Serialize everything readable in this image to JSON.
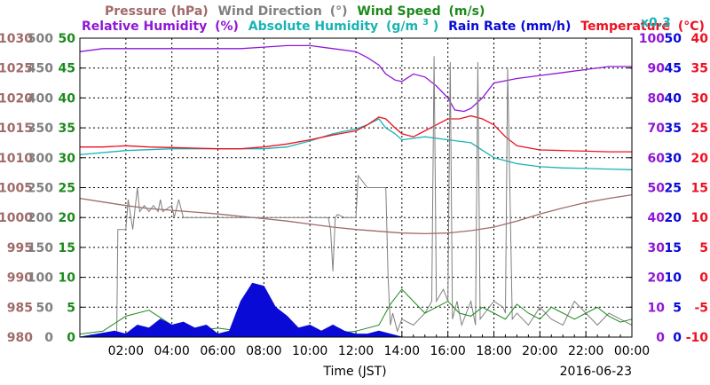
{
  "colors": {
    "pressure": "#a06a6a",
    "wind_direction": "#808080",
    "wind_speed": "#1b8a1b",
    "relative_humidity": "#8f17d6",
    "absolute_humidity": "#1ab3b3",
    "rain_rate": "#0a0ad6",
    "temperature": "#ee1122",
    "grid": "#000000"
  },
  "chart_data": {
    "type": "line",
    "legend": {
      "row1": [
        "Pressure (hPa)",
        "Wind Direction",
        "(°)",
        "Wind Speed",
        "(m/s)"
      ],
      "row2": [
        "Relative Humidity",
        "(%)",
        "Absolute Humidity",
        "(g/m",
        "3",
        ")",
        "Rain Rate",
        "(mm/h)",
        "Temperature",
        "(°C)",
        "x0.3"
      ]
    },
    "xlabel": "Time (JST)",
    "date": "2016-06-23",
    "x_ticks": [
      "02:00",
      "04:00",
      "06:00",
      "08:00",
      "10:00",
      "12:00",
      "14:00",
      "16:00",
      "18:00",
      "20:00",
      "22:00",
      "00:00"
    ],
    "xlim": [
      0,
      24
    ],
    "axes": {
      "pressure": {
        "range": [
          980,
          1030
        ],
        "ticks": [
          "1030",
          "1025",
          "1020",
          "1015",
          "1010",
          "1005",
          "1000",
          "995",
          "990",
          "985",
          "980"
        ]
      },
      "wind_direction": {
        "range": [
          0,
          500
        ],
        "ticks": [
          "500",
          "450",
          "400",
          "350",
          "300",
          "250",
          "200",
          "150",
          "100",
          "50",
          "0"
        ]
      },
      "wind_speed": {
        "range": [
          0,
          50
        ],
        "ticks": [
          "50",
          "45",
          "40",
          "35",
          "30",
          "25",
          "20",
          "15",
          "10",
          "5",
          "0"
        ]
      },
      "relative_humidity": {
        "range": [
          0,
          100
        ],
        "ticks": [
          "100",
          "90",
          "80",
          "70",
          "60",
          "50",
          "40",
          "30",
          "20",
          "10",
          "0"
        ]
      },
      "rain_rate": {
        "range": [
          0,
          50
        ],
        "ticks": [
          "50",
          "45",
          "40",
          "35",
          "30",
          "25",
          "20",
          "15",
          "10",
          "5",
          "0"
        ]
      },
      "temperature": {
        "range": [
          -10,
          40
        ],
        "ticks": [
          "40",
          "35",
          "30",
          "25",
          "20",
          "15",
          "10",
          "5",
          "0",
          "-5",
          "-10"
        ]
      }
    },
    "series": [
      {
        "name": "Pressure (hPa)",
        "axis": "pressure",
        "x": [
          0,
          1,
          2,
          3,
          4,
          5,
          6,
          7,
          8,
          9,
          10,
          11,
          12,
          13,
          14,
          15,
          16,
          17,
          18,
          19,
          20,
          21,
          22,
          23,
          24
        ],
        "y": [
          1003.2,
          1002.6,
          1002.0,
          1001.5,
          1001.2,
          1000.9,
          1000.6,
          1000.2,
          999.8,
          999.4,
          998.9,
          998.4,
          998.0,
          997.7,
          997.4,
          997.3,
          997.4,
          997.8,
          998.4,
          999.4,
          1000.6,
          1001.6,
          1002.5,
          1003.2,
          1003.8
        ]
      },
      {
        "name": "Relative Humidity (%)",
        "axis": "relative_humidity",
        "x": [
          0,
          1,
          2,
          3,
          4,
          5,
          6,
          7,
          8,
          9,
          10,
          11,
          12,
          12.5,
          13,
          13.3,
          13.7,
          14.0,
          14.5,
          15.0,
          15.5,
          16.0,
          16.3,
          16.7,
          17.0,
          17.5,
          18.0,
          19.0,
          20.0,
          21.0,
          22.0,
          23.0,
          24.0
        ],
        "y": [
          95.5,
          96.5,
          96.5,
          96.5,
          96.5,
          96.5,
          96.5,
          96.5,
          97.0,
          97.5,
          97.5,
          96.5,
          95.5,
          93.5,
          91.0,
          88.0,
          86.0,
          85.5,
          88.0,
          87.0,
          84.0,
          80.0,
          76.0,
          75.5,
          76.5,
          80.0,
          85.0,
          86.5,
          87.5,
          88.5,
          89.5,
          90.5,
          90.5
        ]
      },
      {
        "name": "Absolute Humidity (g/m3)",
        "axis": "rain_rate",
        "x": [
          0,
          2,
          4,
          6,
          8,
          9,
          10,
          11,
          12,
          12.5,
          13,
          13.3,
          13.7,
          14,
          15,
          16,
          17,
          18,
          19,
          20,
          21,
          22,
          23,
          24
        ],
        "y": [
          30.5,
          31.2,
          31.5,
          31.5,
          31.5,
          31.8,
          32.8,
          34.0,
          34.8,
          35.5,
          36.5,
          35.0,
          34.0,
          33.0,
          33.5,
          33.0,
          32.5,
          30.0,
          29.0,
          28.5,
          28.3,
          28.2,
          28.1,
          28.0
        ]
      },
      {
        "name": "Temperature (°C)",
        "axis": "temperature",
        "x": [
          0,
          1,
          2,
          3,
          4,
          5,
          6,
          7,
          8,
          9,
          10,
          11,
          12,
          12.5,
          13,
          13.3,
          13.7,
          14,
          14.5,
          15,
          15.5,
          16,
          16.5,
          17,
          17.5,
          18,
          18.5,
          19,
          20,
          21,
          22,
          23,
          24
        ],
        "y": [
          21.8,
          21.8,
          22.0,
          21.8,
          21.7,
          21.6,
          21.5,
          21.5,
          21.8,
          22.3,
          23.0,
          23.8,
          24.5,
          25.5,
          26.8,
          26.5,
          25.0,
          24.0,
          23.5,
          24.5,
          25.5,
          26.5,
          26.5,
          27.0,
          26.5,
          25.5,
          23.5,
          22.0,
          21.3,
          21.2,
          21.1,
          21.0,
          21.0
        ]
      },
      {
        "name": "Wind Direction (°)",
        "axis": "wind_direction",
        "x": [
          0,
          1.6,
          1.65,
          2.0,
          2.1,
          2.3,
          2.5,
          2.6,
          2.8,
          3.0,
          3.2,
          3.4,
          3.5,
          3.6,
          3.8,
          4.0,
          4.1,
          4.3,
          4.5,
          4.6,
          4.8,
          5.0,
          5.5,
          7.0,
          8.0,
          9.0,
          10.0,
          10.8,
          10.9,
          11.0,
          11.1,
          11.2,
          11.5,
          11.7,
          11.8,
          12.0,
          12.1,
          12.5,
          13.0,
          13.3,
          13.4,
          13.5,
          13.6,
          13.8,
          14.0,
          14.5,
          15.0,
          15.3,
          15.4,
          15.5,
          15.8,
          16.0,
          16.1,
          16.2,
          16.4,
          16.6,
          16.8,
          17.0,
          17.2,
          17.3,
          17.4,
          17.6,
          18.0,
          18.4,
          18.5,
          18.6,
          18.8,
          19.0,
          19.5,
          20.0,
          20.5,
          21.0,
          21.5,
          22.0,
          22.5,
          23.0,
          23.5,
          24.0
        ],
        "y": [
          0,
          0,
          180,
          180,
          230,
          180,
          250,
          210,
          220,
          210,
          220,
          210,
          230,
          210,
          215,
          220,
          200,
          230,
          200,
          200,
          200,
          200,
          200,
          200,
          200,
          200,
          200,
          200,
          180,
          110,
          200,
          205,
          200,
          200,
          200,
          200,
          270,
          250,
          250,
          250,
          100,
          20,
          40,
          10,
          30,
          20,
          40,
          60,
          470,
          60,
          80,
          60,
          460,
          30,
          60,
          20,
          40,
          60,
          20,
          460,
          30,
          40,
          60,
          50,
          40,
          450,
          30,
          40,
          20,
          50,
          30,
          20,
          60,
          40,
          20,
          40,
          30,
          20
        ]
      },
      {
        "name": "Wind Speed (m/s)",
        "axis": "wind_speed",
        "x": [
          0,
          1,
          2,
          3,
          4,
          5,
          6,
          7,
          8,
          9,
          10,
          11,
          12,
          13,
          13.5,
          14,
          14.5,
          15,
          15.5,
          16,
          16.5,
          17,
          17.5,
          18,
          18.5,
          19,
          19.5,
          20,
          20.5,
          21,
          21.5,
          22,
          22.5,
          23,
          23.5,
          24
        ],
        "y": [
          0.5,
          1,
          3.5,
          4.5,
          2,
          1,
          1.5,
          1,
          0.5,
          1,
          0.5,
          0.5,
          1,
          2,
          5.5,
          8,
          6,
          4,
          5,
          6,
          4,
          3.5,
          5,
          4,
          3,
          5.5,
          4,
          3,
          5,
          4,
          3,
          4,
          5,
          3.5,
          2.5,
          3
        ]
      },
      {
        "name": "Rain Rate (mm/h)",
        "axis": "rain_rate",
        "x": [
          0,
          1.5,
          2.0,
          2.5,
          3.0,
          3.5,
          4.0,
          4.5,
          5.0,
          5.5,
          6.0,
          6.5,
          7.0,
          7.5,
          8.0,
          8.5,
          9.0,
          9.5,
          10.0,
          10.5,
          11.0,
          11.5,
          12.0,
          12.5,
          13.0,
          13.5,
          14.0
        ],
        "y": [
          0,
          1,
          0.5,
          2,
          1.5,
          3,
          2,
          2.5,
          1.5,
          2,
          0.5,
          1,
          6,
          9,
          8.5,
          5,
          3.5,
          1.5,
          2,
          1,
          2,
          1,
          0.5,
          0.5,
          1,
          0.5,
          0
        ]
      }
    ]
  }
}
